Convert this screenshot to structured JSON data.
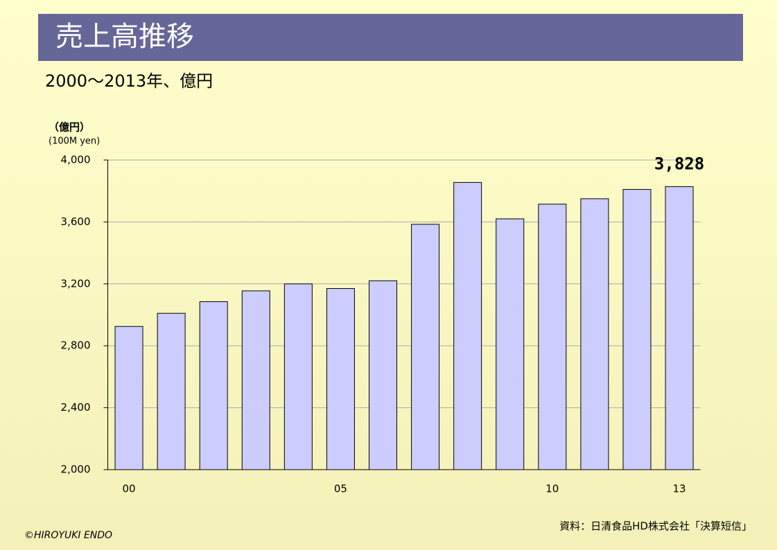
{
  "chart_data": {
    "type": "bar",
    "title": "売上高推移",
    "subtitle": "2000～2013年、億円",
    "y_label": "（億円）",
    "y_label_en": "(100M yen)",
    "source": "資料：日清食品HD株式会社「決算短信」",
    "credit": "©HIROYUKI ENDO",
    "categories": [
      "00",
      null,
      null,
      null,
      null,
      "05",
      null,
      null,
      null,
      null,
      "10",
      null,
      null,
      "13"
    ],
    "values": [
      2925,
      3010,
      3085,
      3155,
      3200,
      3170,
      3220,
      3585,
      3855,
      3620,
      3715,
      3750,
      3810,
      3828
    ],
    "value_labels": [
      null,
      null,
      null,
      null,
      null,
      null,
      null,
      null,
      null,
      null,
      null,
      null,
      null,
      "3,828"
    ],
    "color": "#ccccff",
    "ylim": [
      2000,
      4000
    ],
    "yticks": [
      {
        "value": 2000,
        "label": "2,000"
      },
      {
        "value": 2400,
        "label": "2,400"
      },
      {
        "value": 2800,
        "label": "2,800"
      },
      {
        "value": 3200,
        "label": "3,200"
      },
      {
        "value": 3600,
        "label": "3,600"
      },
      {
        "value": 4000,
        "label": "4,000"
      }
    ],
    "grid": true
  }
}
